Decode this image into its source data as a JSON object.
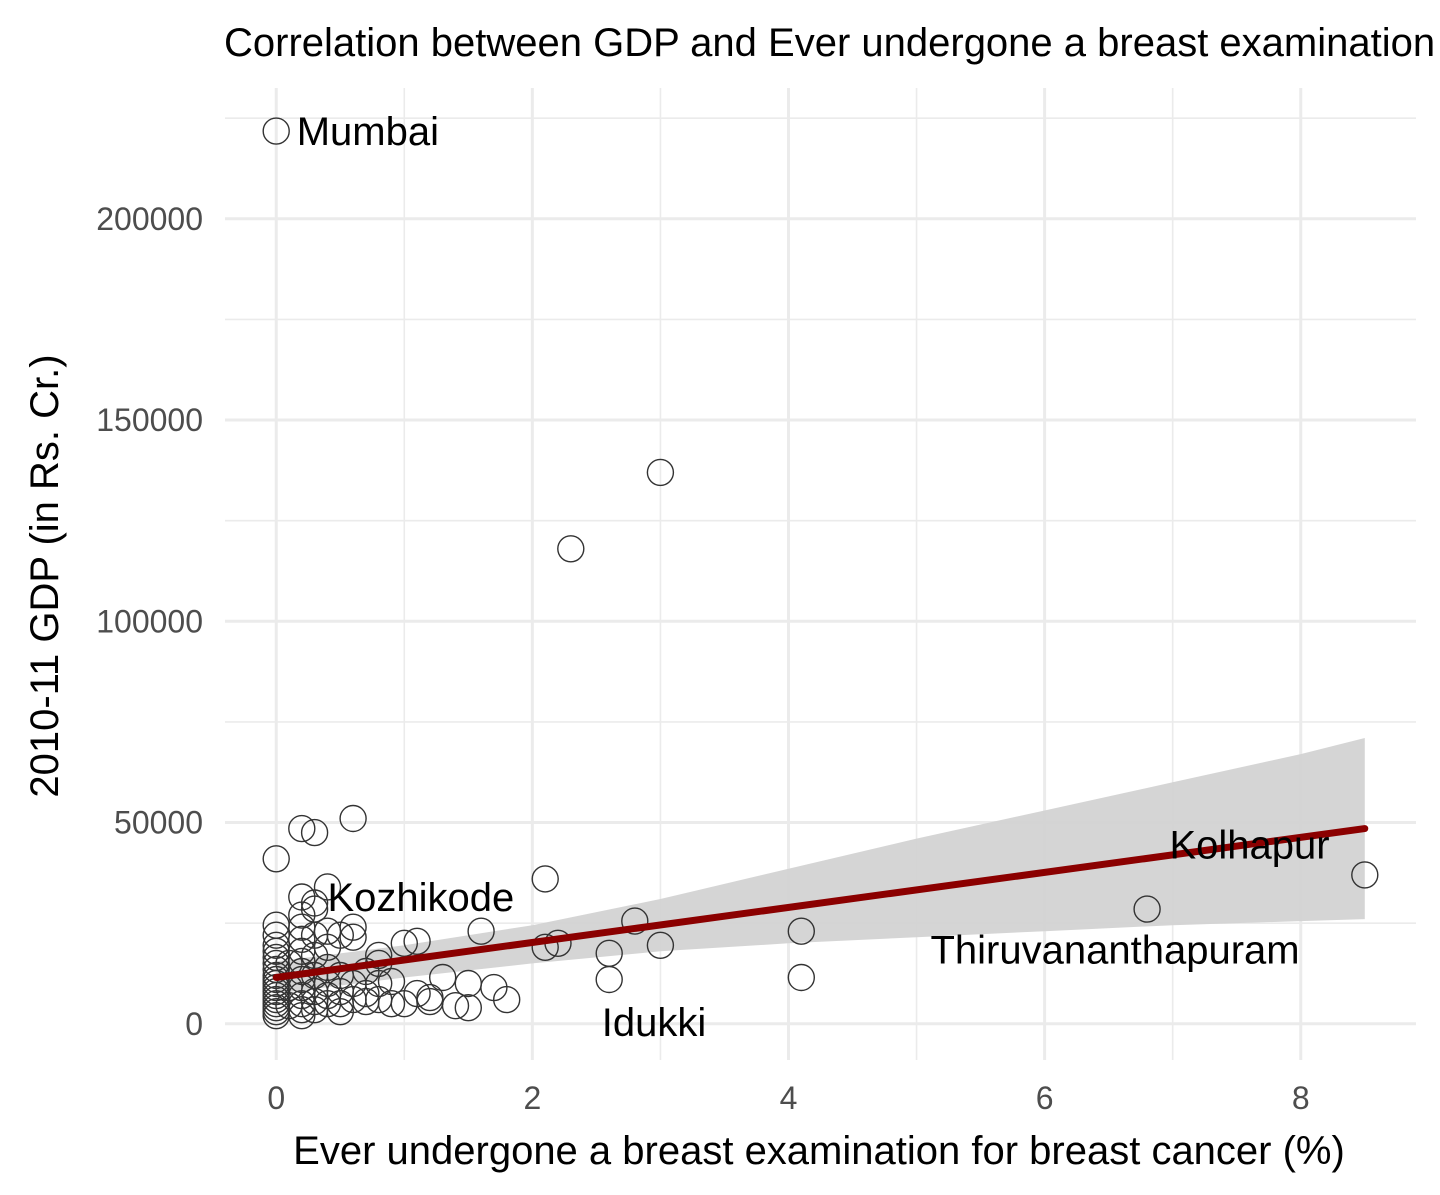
{
  "chart_data": {
    "type": "scatter",
    "title": "Correlation between GDP and Ever undergone a breast examination",
    "xlabel": "Ever undergone a breast examination for breast cancer (%)",
    "ylabel": "2010-11 GDP (in Rs. Cr.)",
    "xlim": [
      -0.4,
      8.9
    ],
    "ylim": [
      -9000,
      232500
    ],
    "x_ticks": [
      0,
      2,
      4,
      6,
      8
    ],
    "x_tick_labels": [
      "0",
      "2",
      "4",
      "6",
      "8"
    ],
    "y_ticks": [
      0,
      50000,
      100000,
      150000,
      200000
    ],
    "y_tick_labels": [
      "0",
      "50000",
      "100000",
      "150000",
      "200000"
    ],
    "grid": true,
    "colors": {
      "trend": "#8b0000",
      "band": "#d3d3d3",
      "points": "#333333",
      "grid": "#ebebeb"
    },
    "points": [
      [
        0,
        221800
      ],
      [
        0,
        41000
      ],
      [
        0,
        24500
      ],
      [
        0,
        22000
      ],
      [
        0,
        19500
      ],
      [
        0,
        18000
      ],
      [
        0,
        16500
      ],
      [
        0,
        15000
      ],
      [
        0,
        13500
      ],
      [
        0,
        12000
      ],
      [
        0,
        11000
      ],
      [
        0,
        10000
      ],
      [
        0,
        9000
      ],
      [
        0,
        8000
      ],
      [
        0,
        7000
      ],
      [
        0,
        6000
      ],
      [
        0,
        5000
      ],
      [
        0,
        4000
      ],
      [
        0,
        3000
      ],
      [
        0,
        2000
      ],
      [
        0.1,
        15000
      ],
      [
        0.1,
        9000
      ],
      [
        0.1,
        4500
      ],
      [
        0.2,
        48500
      ],
      [
        0.2,
        31500
      ],
      [
        0.2,
        27000
      ],
      [
        0.2,
        24000
      ],
      [
        0.2,
        21000
      ],
      [
        0.2,
        18000
      ],
      [
        0.2,
        15500
      ],
      [
        0.2,
        13000
      ],
      [
        0.2,
        11000
      ],
      [
        0.2,
        9000
      ],
      [
        0.2,
        7000
      ],
      [
        0.2,
        5000
      ],
      [
        0.2,
        3500
      ],
      [
        0.2,
        2000
      ],
      [
        0.3,
        47500
      ],
      [
        0.3,
        30000
      ],
      [
        0.3,
        28500
      ],
      [
        0.3,
        22000
      ],
      [
        0.3,
        17000
      ],
      [
        0.3,
        12000
      ],
      [
        0.3,
        8000
      ],
      [
        0.3,
        5500
      ],
      [
        0.3,
        3500
      ],
      [
        0.4,
        34000
      ],
      [
        0.4,
        23000
      ],
      [
        0.4,
        19000
      ],
      [
        0.4,
        14000
      ],
      [
        0.4,
        10000
      ],
      [
        0.4,
        7000
      ],
      [
        0.4,
        5000
      ],
      [
        0.5,
        22000
      ],
      [
        0.5,
        12000
      ],
      [
        0.5,
        8000
      ],
      [
        0.5,
        5000
      ],
      [
        0.5,
        3000
      ],
      [
        0.6,
        51000
      ],
      [
        0.6,
        24000
      ],
      [
        0.6,
        21500
      ],
      [
        0.6,
        10000
      ],
      [
        0.6,
        6000
      ],
      [
        0.7,
        13000
      ],
      [
        0.7,
        7500
      ],
      [
        0.7,
        5500
      ],
      [
        0.8,
        17000
      ],
      [
        0.8,
        15000
      ],
      [
        0.8,
        10000
      ],
      [
        0.8,
        6000
      ],
      [
        0.9,
        10500
      ],
      [
        0.9,
        5000
      ],
      [
        1.0,
        20000
      ],
      [
        1.0,
        5000
      ],
      [
        1.1,
        20500
      ],
      [
        1.1,
        7500
      ],
      [
        1.2,
        6500
      ],
      [
        1.2,
        5500
      ],
      [
        1.3,
        11500
      ],
      [
        1.4,
        4500
      ],
      [
        1.5,
        10000
      ],
      [
        1.5,
        4000
      ],
      [
        1.6,
        23000
      ],
      [
        1.7,
        9000
      ],
      [
        1.8,
        6000
      ],
      [
        2.1,
        36000
      ],
      [
        2.1,
        19000
      ],
      [
        2.2,
        20000
      ],
      [
        2.3,
        118000
      ],
      [
        2.6,
        17500
      ],
      [
        2.6,
        11000
      ],
      [
        2.8,
        25500
      ],
      [
        3.0,
        137000
      ],
      [
        3.0,
        19500
      ],
      [
        4.1,
        23000
      ],
      [
        4.1,
        11500
      ],
      [
        6.8,
        28500
      ],
      [
        8.5,
        37000
      ]
    ],
    "labels": [
      {
        "text": "Mumbai",
        "x": 0.16,
        "y": 221800,
        "anchor": "start"
      },
      {
        "text": "Kozhikode",
        "x": 0.4,
        "y": 31500,
        "anchor": "start"
      },
      {
        "text": "Idukki",
        "x": 2.95,
        "y": 500,
        "anchor": "middle"
      },
      {
        "text": "Thiruvananthapuram",
        "x": 6.55,
        "y": 18500,
        "anchor": "middle"
      },
      {
        "text": "Kolhapur",
        "x": 7.6,
        "y": 44500,
        "anchor": "middle"
      }
    ],
    "trend": {
      "x": [
        0,
        8.5
      ],
      "y": [
        11500,
        48500
      ]
    },
    "band": {
      "x": [
        0,
        1,
        2,
        3,
        4,
        5,
        6,
        7,
        8,
        8.5
      ],
      "upper": [
        15500,
        19500,
        24500,
        31000,
        38500,
        46000,
        53000,
        60000,
        67000,
        71000
      ],
      "lower": [
        7500,
        11500,
        15000,
        18000,
        20000,
        21500,
        23000,
        24500,
        25500,
        26000
      ]
    }
  }
}
